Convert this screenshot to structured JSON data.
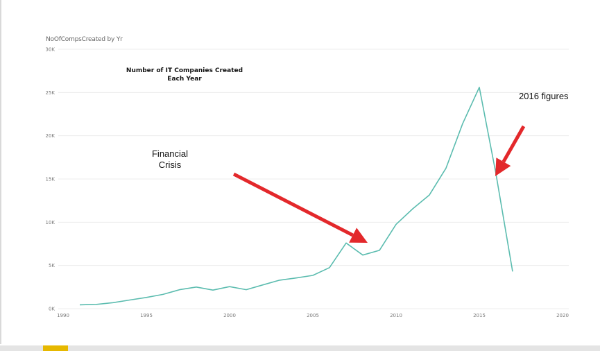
{
  "chart_data": {
    "type": "line",
    "title": "NoOfCompsCreated by Yr",
    "xlabel": "",
    "ylabel": "",
    "xlim": [
      1990,
      2020
    ],
    "ylim": [
      0,
      30000
    ],
    "grid": true,
    "legend": "none",
    "x_ticks": [
      1990,
      1995,
      2000,
      2005,
      2010,
      2015,
      2020
    ],
    "x_tick_labels": [
      "1990",
      "1995",
      "2000",
      "2005",
      "2010",
      "2015",
      "2020"
    ],
    "y_ticks": [
      0,
      5000,
      10000,
      15000,
      20000,
      25000,
      30000
    ],
    "y_tick_labels": [
      "0K",
      "5K",
      "10K",
      "15K",
      "20K",
      "25K",
      "30K"
    ],
    "series": [
      {
        "color": "#5bbcaf",
        "x": [
          1991,
          1992,
          1993,
          1994,
          1995,
          1996,
          1997,
          1998,
          1999,
          2000,
          2001,
          2002,
          2003,
          2004,
          2005,
          2006,
          2007,
          2008,
          2009,
          2010,
          2011,
          2012,
          2013,
          2014,
          2015,
          2016,
          2017
        ],
        "y": [
          450,
          500,
          700,
          1000,
          1300,
          1650,
          2200,
          2500,
          2150,
          2550,
          2200,
          2750,
          3300,
          3550,
          3850,
          4750,
          7600,
          6200,
          6750,
          9750,
          11550,
          13150,
          16250,
          21400,
          25600,
          15600,
          4300
        ]
      }
    ],
    "annotations": {
      "chart_heading": [
        "Number of IT Companies Created",
        "Each Year"
      ],
      "financial_crisis": [
        "Financial",
        "Crisis"
      ],
      "figures_2016": "2016 figures"
    },
    "arrow_color": "#e3282b"
  }
}
